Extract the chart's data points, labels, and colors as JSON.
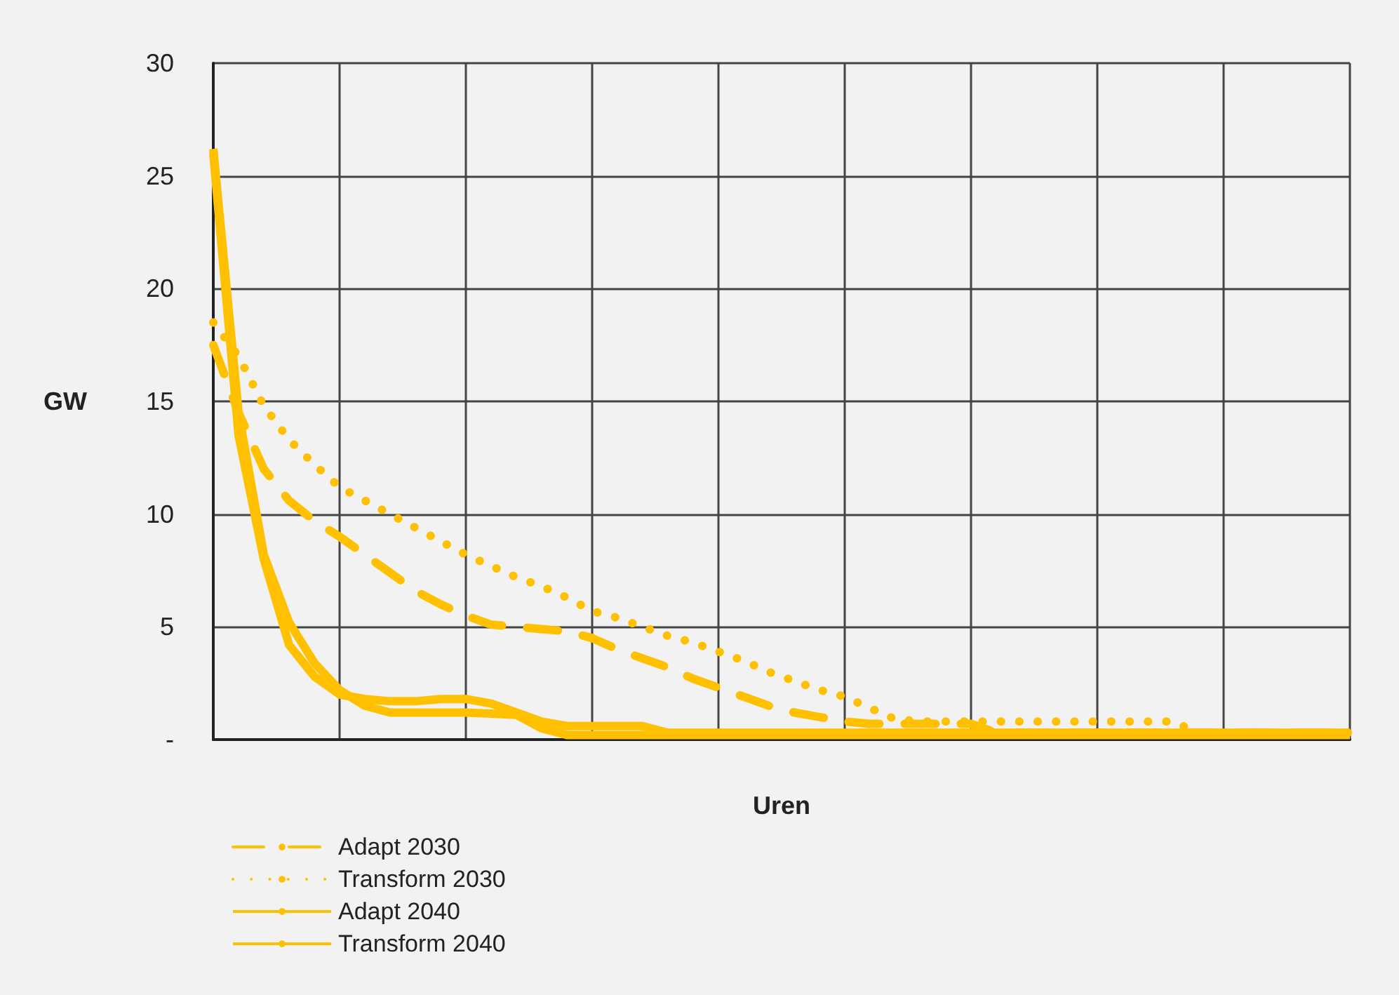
{
  "chart_data": {
    "type": "line",
    "xlabel": "Uren",
    "ylabel": "GW",
    "categories": [
      null,
      null,
      null,
      null,
      null,
      null,
      null,
      null,
      null,
      null,
      null,
      null,
      null,
      null,
      null,
      null,
      null,
      null,
      null,
      null,
      null,
      null,
      null,
      null,
      null,
      null,
      null,
      null,
      null,
      null,
      null,
      null,
      null,
      null,
      null,
      null,
      null,
      null,
      null,
      null,
      null,
      null,
      null,
      null,
      null,
      null
    ],
    "series": [
      {
        "name": "Adapt 2030",
        "color": "#ffc000",
        "line_style": "dashed",
        "values": [
          17.5,
          14.5,
          12.0,
          10.6,
          9.7,
          9.0,
          8.2,
          7.4,
          6.6,
          6.0,
          5.5,
          5.1,
          5.0,
          4.9,
          4.8,
          4.5,
          4.0,
          3.6,
          3.2,
          2.7,
          2.3,
          1.9,
          1.5,
          1.2,
          1.0,
          0.8,
          0.7,
          0.7,
          0.7,
          0.7,
          0.7,
          0.3,
          0.3,
          0.3,
          0.3,
          0.3,
          0.3,
          0.3,
          0.3,
          0.3,
          0.3,
          0.3,
          0.3,
          0.3,
          0.3,
          0.3
        ]
      },
      {
        "name": "Transform 2030",
        "color": "#ffc000",
        "line_style": "dotted",
        "values": [
          18.5,
          17.0,
          14.8,
          13.3,
          12.2,
          11.2,
          10.6,
          10.0,
          9.4,
          8.8,
          8.2,
          7.7,
          7.2,
          6.8,
          6.3,
          5.7,
          5.4,
          5.0,
          4.6,
          4.3,
          3.9,
          3.5,
          3.0,
          2.6,
          2.2,
          1.9,
          1.4,
          0.9,
          0.8,
          0.8,
          0.8,
          0.8,
          0.8,
          0.8,
          0.8,
          0.8,
          0.8,
          0.8,
          0.8,
          0.3,
          0.3,
          0.3,
          0.3,
          0.3,
          0.3,
          0.3
        ]
      },
      {
        "name": "Adapt 2040",
        "color": "#ffc000",
        "line_style": "solid",
        "values": [
          26.0,
          13.5,
          8.0,
          4.2,
          2.8,
          2.0,
          1.8,
          1.7,
          1.7,
          1.8,
          1.8,
          1.6,
          1.2,
          0.8,
          0.6,
          0.6,
          0.6,
          0.6,
          0.3,
          0.3,
          0.3,
          0.3,
          0.3,
          0.3,
          0.3,
          0.3,
          0.3,
          0.3,
          0.3,
          0.3,
          0.3,
          0.3,
          0.3,
          0.3,
          0.3,
          0.3,
          0.3,
          0.3,
          0.3,
          0.3,
          0.3,
          0.3,
          0.3,
          0.3,
          0.3,
          0.3
        ]
      },
      {
        "name": "Transform 2040",
        "color": "#ffc000",
        "line_style": "solid",
        "values": [
          26.2,
          14.5,
          8.2,
          5.2,
          3.4,
          2.2,
          1.5,
          1.2,
          1.2,
          1.2,
          1.2,
          1.15,
          1.1,
          0.5,
          0.2,
          0.2,
          0.2,
          0.2,
          0.2,
          0.2,
          0.2,
          0.2,
          0.2,
          0.2,
          0.2,
          0.2,
          0.2,
          0.2,
          0.2,
          0.2,
          0.2,
          0.2,
          0.2,
          0.2,
          0.2,
          0.2,
          0.2,
          0.2,
          0.2,
          0.2,
          0.2,
          0.2,
          0.2,
          0.2,
          0.2,
          0.2
        ]
      }
    ],
    "ylim": [
      0,
      30
    ],
    "yticks": [
      {
        "value": 0,
        "label": "-"
      },
      5,
      10,
      15,
      20,
      25,
      30
    ],
    "grid": true,
    "legend": "bottom left",
    "marker": "none"
  }
}
